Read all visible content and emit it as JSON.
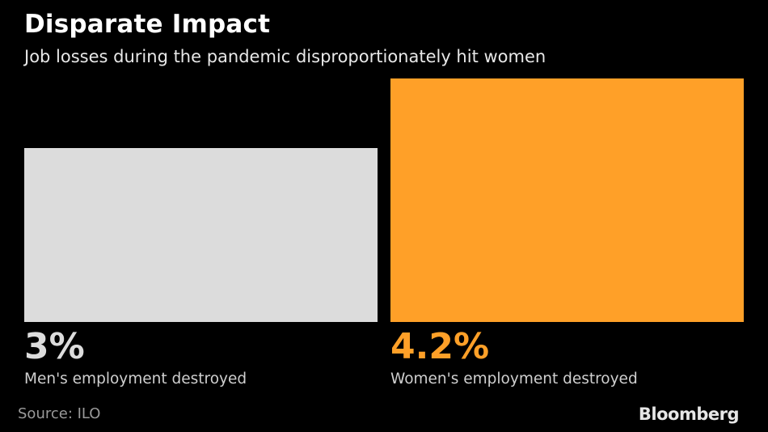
{
  "title": "Disparate Impact",
  "subtitle": "Job losses during the pandemic disproportionately hit women",
  "source": "Source: ILO",
  "brand": "Bloomberg",
  "colors": {
    "background": "#000000",
    "men": "#dcdcdc",
    "women": "#ffa028",
    "label": "#cfcfcf"
  },
  "chart_data": {
    "type": "bar",
    "categories": [
      "Men's employment destroyed",
      "Women's employment destroyed"
    ],
    "values": [
      3,
      4.2
    ],
    "value_labels": [
      "3%",
      "4.2%"
    ],
    "unit": "%",
    "ylim": [
      0,
      4.2
    ],
    "grid": false,
    "legend": "none"
  }
}
